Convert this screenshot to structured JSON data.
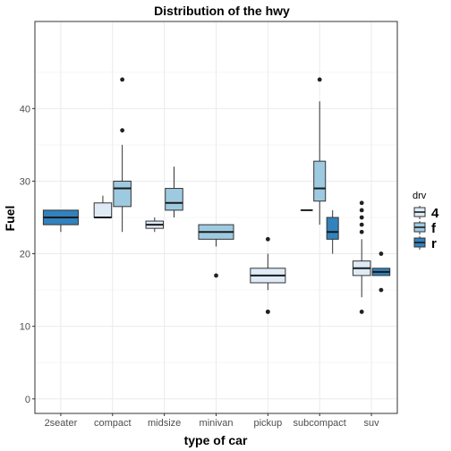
{
  "chart_data": {
    "type": "boxplot",
    "title": "Distribution of the hwy",
    "xlabel": "type of car",
    "ylabel": "Fuel",
    "ylim": [
      -2,
      52
    ],
    "yticks": [
      0,
      10,
      20,
      30,
      40
    ],
    "categories": [
      "2seater",
      "compact",
      "midsize",
      "minivan",
      "pickup",
      "subcompact",
      "suv"
    ],
    "legend": {
      "title": "drv",
      "position": "right",
      "entries": [
        {
          "key": "4",
          "label": "4",
          "color": "#deebf7"
        },
        {
          "key": "f",
          "label": "f",
          "color": "#9ecae1"
        },
        {
          "key": "r",
          "label": "r",
          "color": "#3182bd"
        }
      ]
    },
    "grid": true,
    "boxes": [
      {
        "category": "2seater",
        "drv": "r",
        "min": 23,
        "q1": 24,
        "median": 25,
        "q3": 26,
        "max": 26,
        "outliers": []
      },
      {
        "category": "compact",
        "drv": "4",
        "min": 25,
        "q1": 25,
        "median": 25,
        "q3": 27,
        "max": 28,
        "outliers": []
      },
      {
        "category": "compact",
        "drv": "f",
        "min": 23,
        "q1": 26.5,
        "median": 29,
        "q3": 30,
        "max": 35,
        "outliers": [
          37,
          44
        ]
      },
      {
        "category": "midsize",
        "drv": "4",
        "min": 23,
        "q1": 23.5,
        "median": 24,
        "q3": 24.5,
        "max": 25,
        "outliers": []
      },
      {
        "category": "midsize",
        "drv": "f",
        "min": 25,
        "q1": 26,
        "median": 27,
        "q3": 29,
        "max": 32,
        "outliers": []
      },
      {
        "category": "minivan",
        "drv": "f",
        "min": 21,
        "q1": 22,
        "median": 23,
        "q3": 24,
        "max": 24,
        "outliers": [
          17
        ]
      },
      {
        "category": "pickup",
        "drv": "4",
        "min": 15,
        "q1": 16,
        "median": 17,
        "q3": 18,
        "max": 20,
        "outliers": [
          12,
          12,
          22
        ]
      },
      {
        "category": "subcompact",
        "drv": "4",
        "min": 26,
        "q1": 26,
        "median": 26,
        "q3": 26,
        "max": 26,
        "outliers": []
      },
      {
        "category": "subcompact",
        "drv": "f",
        "min": 24,
        "q1": 27.25,
        "median": 29,
        "q3": 32.75,
        "max": 41,
        "outliers": [
          44
        ]
      },
      {
        "category": "subcompact",
        "drv": "r",
        "min": 20,
        "q1": 22,
        "median": 23,
        "q3": 25,
        "max": 26,
        "outliers": []
      },
      {
        "category": "suv",
        "drv": "4",
        "min": 14,
        "q1": 17,
        "median": 18,
        "q3": 19,
        "max": 22,
        "outliers": [
          12,
          23,
          24,
          25,
          26,
          27
        ]
      },
      {
        "category": "suv",
        "drv": "r",
        "min": 17,
        "q1": 17,
        "median": 17.5,
        "q3": 18,
        "max": 18,
        "outliers": [
          15,
          20
        ]
      }
    ]
  }
}
